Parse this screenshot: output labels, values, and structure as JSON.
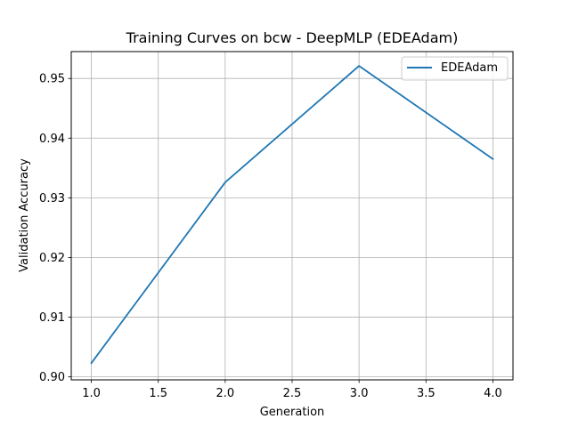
{
  "chart_data": {
    "type": "line",
    "title": "Training Curves on bcw - DeepMLP (EDEAdam)",
    "xlabel": "Generation",
    "ylabel": "Validation Accuracy",
    "xlim": [
      0.85,
      4.15
    ],
    "ylim": [
      0.8995,
      0.9545
    ],
    "xticks": [
      1.0,
      1.5,
      2.0,
      2.5,
      3.0,
      3.5,
      4.0
    ],
    "xtick_labels": [
      "1.0",
      "1.5",
      "2.0",
      "2.5",
      "3.0",
      "3.5",
      "4.0"
    ],
    "yticks": [
      0.9,
      0.91,
      0.92,
      0.93,
      0.94,
      0.95
    ],
    "ytick_labels": [
      "0.90",
      "0.91",
      "0.92",
      "0.93",
      "0.94",
      "0.95"
    ],
    "grid": true,
    "legend_position": "upper right",
    "series": [
      {
        "name": "EDEAdam",
        "color": "#1f77b4",
        "x": [
          1.0,
          2.0,
          3.0,
          4.0
        ],
        "y": [
          0.9023,
          0.9326,
          0.9521,
          0.9365
        ]
      }
    ]
  }
}
